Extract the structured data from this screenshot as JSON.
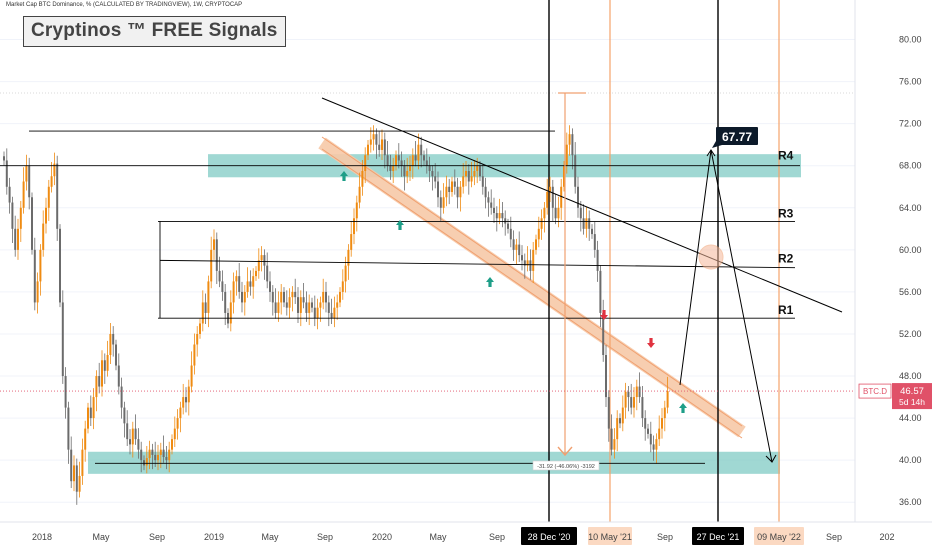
{
  "header": {
    "chart_title": "Market Cap BTC Dominance, % (CALCULATED BY TRADINGVIEW), 1W, CRYPTOCAP",
    "brand_label": "Cryptinos ™ FREE Signals"
  },
  "colors": {
    "up": "#ef8b12",
    "down": "#6b6b6b",
    "zone": "#80cbc4",
    "channel": "#f7c9a8",
    "price_line": "#e05168",
    "arrow_up": "#1e9e88",
    "arrow_down": "#e0323f",
    "vline_orange": "#f5a36b",
    "vline_black": "#000000"
  },
  "chart_data": {
    "type": "candlestick",
    "symbol": "BTC.D",
    "interval": "1W",
    "ylim": [
      34.5,
      83
    ],
    "y_ticks": [
      "36.00",
      "40.00",
      "44.00",
      "48.00",
      "52.00",
      "56.00",
      "60.00",
      "64.00",
      "68.00",
      "72.00",
      "76.00",
      "80.00"
    ],
    "x_ticks": [
      "2018",
      "May",
      "Sep",
      "2019",
      "May",
      "Sep",
      "2020",
      "May",
      "Sep",
      "May",
      "Sep",
      "Sep",
      "202"
    ],
    "x_highlight": [
      {
        "label": "28 Dec '20",
        "style": "dark"
      },
      {
        "label": "10 May '21",
        "style": "light"
      },
      {
        "label": "27 Dec '21",
        "style": "dark"
      },
      {
        "label": "09 May '22",
        "style": "light"
      }
    ],
    "current_price": {
      "symbol": "BTC.D",
      "value": "46.57",
      "countdown": "5d 14h"
    },
    "resistance_labels": [
      "R1",
      "R2",
      "R3",
      "R4"
    ],
    "target_label": "67.77",
    "measure_label": "-31.92 (-46.06%) -3192",
    "closes": [
      68.5,
      66.0,
      64.5,
      62.0,
      60.0,
      62.0,
      64.0,
      66.5,
      68.0,
      65.0,
      60.0,
      55.0,
      57.0,
      60.0,
      62.5,
      64.0,
      66.0,
      67.0,
      68.2,
      62.0,
      55.0,
      48.0,
      45.0,
      41.0,
      38.0,
      39.5,
      37.0,
      38.5,
      41.0,
      43.0,
      45.0,
      44.0,
      46.0,
      48.0,
      47.0,
      49.5,
      48.5,
      50.0,
      52.0,
      51.0,
      49.0,
      47.0,
      45.0,
      43.5,
      42.0,
      41.5,
      43.0,
      42.0,
      41.0,
      40.0,
      39.5,
      40.2,
      41.0,
      40.5,
      40.0,
      40.5,
      41.0,
      40.3,
      40.0,
      41.0,
      42.0,
      43.0,
      44.0,
      45.0,
      46.0,
      45.5,
      47.0,
      49.0,
      51.0,
      52.0,
      53.0,
      55.0,
      54.0,
      57.0,
      60.0,
      61.0,
      58.0,
      57.0,
      56.0,
      54.0,
      53.0,
      55.0,
      57.0,
      57.5,
      56.0,
      55.0,
      56.0,
      57.0,
      56.5,
      57.5,
      58.0,
      59.0,
      59.5,
      58.5,
      57.0,
      56.0,
      55.0,
      54.0,
      55.0,
      56.0,
      55.0,
      54.5,
      55.5,
      56.0,
      55.5,
      54.0,
      55.5,
      55.0,
      54.0,
      55.0,
      54.5,
      53.5,
      54.5,
      55.0,
      56.0,
      55.0,
      54.0,
      53.5,
      54.5,
      55.0,
      56.0,
      57.0,
      58.5,
      60.0,
      61.5,
      63.0,
      64.5,
      66.0,
      67.5,
      69.0,
      70.0,
      70.5,
      71.0,
      70.0,
      69.5,
      70.5,
      69.0,
      68.0,
      67.5,
      68.0,
      69.0,
      68.5,
      68.0,
      67.0,
      67.5,
      68.0,
      69.0,
      68.5,
      70.0,
      69.0,
      68.5,
      68.0,
      67.5,
      67.0,
      66.5,
      65.0,
      64.0,
      65.0,
      66.0,
      65.5,
      66.5,
      66.0,
      65.0,
      66.0,
      67.0,
      67.5,
      66.5,
      67.0,
      67.5,
      68.0,
      67.0,
      66.0,
      65.0,
      64.5,
      64.0,
      63.5,
      63.0,
      63.5,
      63.0,
      62.5,
      62.0,
      61.0,
      60.0,
      60.5,
      59.5,
      59.0,
      58.5,
      59.0,
      58.0,
      60.0,
      61.0,
      62.0,
      63.0,
      64.0,
      65.5,
      66.0,
      64.0,
      63.0,
      64.0,
      66.0,
      68.0,
      70.0,
      71.0,
      69.0,
      66.0,
      64.0,
      63.0,
      62.0,
      63.0,
      62.0,
      61.5,
      60.0,
      58.0,
      54.0,
      50.0,
      46.0,
      43.0,
      41.0,
      42.0,
      44.0,
      43.5,
      45.0,
      46.5,
      46.0,
      45.0,
      46.0,
      47.0,
      46.0,
      44.0,
      43.0,
      42.5,
      41.5,
      41.0,
      42.0,
      43.0,
      44.0,
      45.0,
      46.57
    ]
  }
}
